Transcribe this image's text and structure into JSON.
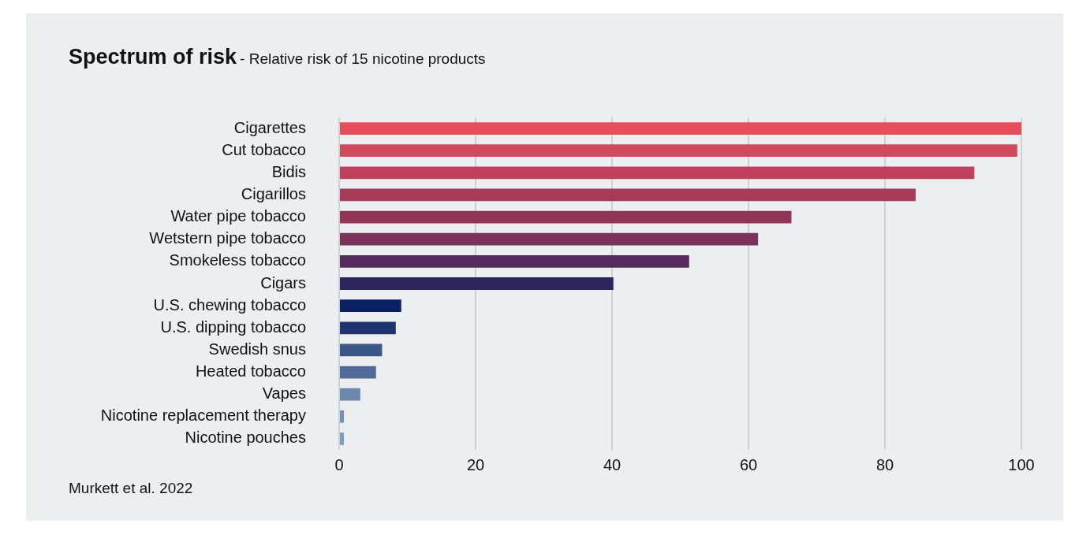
{
  "chart_data": {
    "type": "bar",
    "orientation": "horizontal",
    "title": "Spectrum of risk",
    "subtitle": "- Relative risk of 15 nicotine products",
    "categories": [
      "Cigarettes",
      "Cut tobacco",
      "Bidis",
      "Cigarillos",
      "Water pipe tobacco",
      "Wetstern pipe tobacco",
      "Smokeless tobacco",
      "Cigars",
      "U.S. chewing tobacco",
      "U.S. dipping tobacco",
      "Swedish snus",
      "Heated tobacco",
      "Vapes",
      "Nicotine replacement therapy",
      "Nicotine pouches"
    ],
    "values": [
      100,
      99.4,
      93.1,
      84.5,
      66.3,
      61.4,
      51.3,
      40.2,
      9.1,
      8.3,
      6.3,
      5.4,
      3.1,
      0.7,
      0.7
    ],
    "colors": [
      "#e84d5b",
      "#d4485c",
      "#bf415c",
      "#a73b58",
      "#913559",
      "#7d3359",
      "#552a5c",
      "#2d245e",
      "#0a2062",
      "#1e3370",
      "#3c5889",
      "#526b98",
      "#6a87ae",
      "#7592b8",
      "#7b9dc2"
    ],
    "xlim": [
      0,
      100
    ],
    "xticks": [
      0,
      20,
      40,
      60,
      80,
      100
    ],
    "grid": "x",
    "legend": false,
    "annotations": [
      "Murkett et al. 2022"
    ]
  }
}
